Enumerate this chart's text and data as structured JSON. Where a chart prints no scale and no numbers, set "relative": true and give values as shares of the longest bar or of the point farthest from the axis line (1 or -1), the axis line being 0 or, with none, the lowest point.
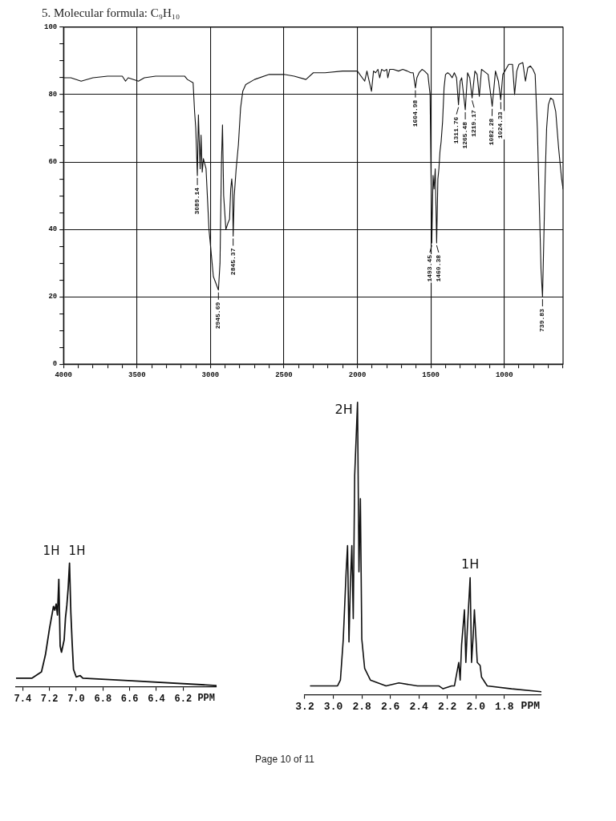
{
  "chart_data": [
    {
      "type": "line",
      "title": "5. Molecular formula: C₉H₁₀",
      "color": "#111111",
      "x": [
        4000,
        3950,
        3880,
        3800,
        3700,
        3600,
        3578,
        3560,
        3490,
        3450,
        3373,
        3250,
        3176,
        3157,
        3118,
        3108,
        3100,
        3089.14,
        3082,
        3070,
        3064,
        3056,
        3048,
        3030,
        3010,
        2980,
        2945.69,
        2935,
        2925,
        2918,
        2910,
        2895,
        2880,
        2870,
        2862,
        2855,
        2850,
        2845.37,
        2838,
        2825,
        2810,
        2795,
        2780,
        2760,
        2700,
        2600,
        2500,
        2430,
        2350,
        2300,
        2220,
        2100,
        2000,
        1950,
        1935,
        1904,
        1890,
        1876,
        1860,
        1848,
        1835,
        1817,
        1800,
        1793,
        1780,
        1756,
        1720,
        1691,
        1660,
        1636,
        1620,
        1604.98,
        1595,
        1580,
        1560,
        1543,
        1520,
        1505,
        1493.45,
        1485,
        1478,
        1470,
        1460.38,
        1452,
        1445,
        1438,
        1430,
        1420,
        1410,
        1400,
        1385,
        1370,
        1355,
        1340,
        1325,
        1311.76,
        1300,
        1290,
        1265.48,
        1250,
        1235,
        1219.17,
        1200,
        1185,
        1170,
        1155,
        1140,
        1110,
        1082.28,
        1060,
        1040,
        1024.33,
        1010,
        996,
        970,
        944,
        930,
        915,
        900,
        874,
        856,
        840,
        822,
        805,
        790,
        775,
        760,
        750,
        739.83,
        732,
        722,
        712,
        700,
        685,
        668,
        650,
        630,
        610,
        600
      ],
      "values": [
        85,
        85,
        84,
        85,
        85.5,
        85.5,
        84,
        85,
        84,
        85,
        85.5,
        85.5,
        85.5,
        84.5,
        83.5,
        75,
        70,
        56,
        74,
        58,
        68,
        57,
        61,
        58,
        40,
        26,
        22,
        30,
        60,
        71,
        50,
        40,
        42,
        43,
        52,
        55,
        52,
        38,
        50,
        58,
        65,
        76,
        81,
        83,
        84.5,
        86,
        86,
        85.5,
        84.5,
        86.5,
        86.5,
        87,
        87,
        84,
        87,
        81,
        87,
        86.5,
        87.5,
        85,
        87.5,
        87,
        87.5,
        85,
        87.5,
        87.5,
        87,
        87.5,
        87,
        86.5,
        86.5,
        82,
        85,
        86.5,
        87.5,
        87,
        86,
        80,
        36,
        56,
        52,
        58,
        36,
        55,
        58,
        63,
        66,
        72,
        82,
        86,
        86.5,
        86,
        85,
        86.5,
        85,
        77,
        84,
        85,
        75.5,
        86.5,
        85,
        79,
        87,
        86,
        79.5,
        87.5,
        87,
        86,
        76.5,
        87,
        84,
        78.5,
        86,
        87,
        89,
        89,
        80,
        87,
        89,
        89.5,
        84,
        88,
        88.5,
        87.5,
        86,
        70,
        45,
        28,
        20,
        35,
        55,
        70,
        77,
        79,
        78.5,
        75,
        64,
        55,
        52
      ],
      "xlim": [
        4000,
        600
      ],
      "xticks": [
        4000,
        {
          "value": 3900,
          "label": null
        },
        {
          "value": 3800,
          "label": null
        },
        {
          "value": 3700,
          "label": null
        },
        {
          "value": 3600,
          "label": null
        },
        3500,
        {
          "value": 3400,
          "label": null
        },
        {
          "value": 3300,
          "label": null
        },
        {
          "value": 3200,
          "label": null
        },
        {
          "value": 3100,
          "label": null
        },
        3000,
        {
          "value": 2900,
          "label": null
        },
        {
          "value": 2800,
          "label": null
        },
        {
          "value": 2700,
          "label": null
        },
        {
          "value": 2600,
          "label": null
        },
        2500,
        {
          "value": 2400,
          "label": null
        },
        {
          "value": 2300,
          "label": null
        },
        {
          "value": 2200,
          "label": null
        },
        {
          "value": 2100,
          "label": null
        },
        2000,
        {
          "value": 1900,
          "label": null
        },
        {
          "value": 1800,
          "label": null
        },
        {
          "value": 1700,
          "label": null
        },
        {
          "value": 1600,
          "label": null
        },
        1500,
        {
          "value": 1400,
          "label": null
        },
        {
          "value": 1300,
          "label": null
        },
        {
          "value": 1200,
          "label": null
        },
        {
          "value": 1100,
          "label": null
        },
        1000,
        {
          "value": 900,
          "label": null
        },
        {
          "value": 800,
          "label": null
        },
        {
          "value": 700,
          "label": null
        },
        {
          "value": 600,
          "label": null
        }
      ],
      "ylim": [
        0,
        100
      ],
      "yticks": [
        0,
        {
          "value": 5,
          "label": null
        },
        {
          "value": 10,
          "label": null
        },
        {
          "value": 15,
          "label": null
        },
        20,
        {
          "value": 25,
          "label": null
        },
        {
          "value": 30,
          "label": null
        },
        {
          "value": 35,
          "label": null
        },
        40,
        {
          "value": 45,
          "label": null
        },
        {
          "value": 50,
          "label": null
        },
        {
          "value": 55,
          "label": null
        },
        60,
        {
          "value": 65,
          "label": null
        },
        {
          "value": 70,
          "label": null
        },
        {
          "value": 75,
          "label": null
        },
        80,
        {
          "value": 85,
          "label": null
        },
        {
          "value": 90,
          "label": null
        },
        {
          "value": 95,
          "label": null
        },
        100
      ],
      "grid": true,
      "annotations": [
        {
          "text": "3089.14",
          "x": 3089.14,
          "y": 56
        },
        {
          "text": "2945.69",
          "x": 2945.69,
          "y": 22
        },
        {
          "text": "2845.37",
          "x": 2845.37,
          "y": 38
        },
        {
          "text": "1604.98",
          "x": 1604.98,
          "y": 82
        },
        {
          "text": "1493.45",
          "x": 1493.45,
          "y": 36
        },
        {
          "text": "1460.38",
          "x": 1460.38,
          "y": 36
        },
        {
          "text": "1311.76",
          "x": 1311.76,
          "y": 77
        },
        {
          "text": "1265.48",
          "x": 1265.48,
          "y": 75.5
        },
        {
          "text": "1219.17",
          "x": 1219.17,
          "y": 79
        },
        {
          "text": "1082.28",
          "x": 1082.28,
          "y": 76.5
        },
        {
          "text": "1024.33",
          "x": 1024.33,
          "y": 78.5
        },
        {
          "text": "739.83",
          "x": 739.83,
          "y": 20
        }
      ]
    },
    {
      "type": "line",
      "relative": true,
      "color": "#111111",
      "xlabel": "PPM",
      "x": [
        7.45,
        7.33,
        7.26,
        7.23,
        7.2,
        7.18,
        7.17,
        7.16,
        7.15,
        7.14,
        7.13,
        7.12,
        7.11,
        7.09,
        7.08,
        7.07,
        7.06,
        7.05,
        7.04,
        7.03,
        7.02,
        7.0,
        6.97,
        6.95,
        6.61,
        5.95
      ],
      "values": [
        0.07,
        0.07,
        0.12,
        0.26,
        0.47,
        0.59,
        0.65,
        0.62,
        0.67,
        0.58,
        0.87,
        0.33,
        0.28,
        0.38,
        0.56,
        0.66,
        0.8,
        1,
        0.6,
        0.35,
        0.14,
        0.08,
        0.09,
        0.07,
        0.05,
        0.01
      ],
      "xlim": [
        7.45,
        5.95
      ],
      "xticks": [
        7.4,
        7.2,
        {
          "value": 7,
          "label": "7.0"
        },
        6.8,
        6.6,
        6.4,
        6.2
      ],
      "annotations": [
        {
          "text": "1H",
          "x": 7.13,
          "y": 0.87
        },
        {
          "text": "1H",
          "x": 7.05,
          "y": 1
        }
      ]
    },
    {
      "type": "line",
      "relative": true,
      "color": "#111111",
      "xlabel": "PPM",
      "x": [
        3.16,
        2.97,
        2.95,
        2.93,
        2.91,
        2.9,
        2.89,
        2.88,
        2.87,
        2.86,
        2.85,
        2.83,
        2.82,
        2.81,
        2.8,
        2.78,
        2.74,
        2.63,
        2.54,
        2.41,
        2.26,
        2.23,
        2.17,
        2.15,
        2.12,
        2.11,
        2.1,
        2.08,
        2.07,
        2.06,
        2.04,
        2.03,
        2.02,
        2.01,
        1.99,
        1.97,
        1.96,
        1.92,
        1.75,
        1.54
      ],
      "values": [
        0.03,
        0.03,
        0.05,
        0.19,
        0.42,
        0.51,
        0.18,
        0.38,
        0.51,
        0.26,
        0.75,
        1,
        0.42,
        0.67,
        0.19,
        0.09,
        0.05,
        0.03,
        0.04,
        0.03,
        0.03,
        0.02,
        0.03,
        0.03,
        0.11,
        0.05,
        0.17,
        0.29,
        0.11,
        0.22,
        0.4,
        0.11,
        0.19,
        0.29,
        0.11,
        0.1,
        0.06,
        0.03,
        0.02,
        0.01
      ],
      "xlim": [
        3.2,
        1.54
      ],
      "xticks": [
        3.2,
        {
          "value": 3,
          "label": "3.0"
        },
        2.8,
        2.6,
        2.4,
        2.2,
        {
          "value": 2,
          "label": "2.0"
        },
        1.8
      ],
      "annotations": [
        {
          "text": "2H",
          "x": 2.83,
          "y": 1
        },
        {
          "text": "1H",
          "x": 2.04,
          "y": 0.4
        },
        "Page 10 of 11"
      ]
    }
  ]
}
